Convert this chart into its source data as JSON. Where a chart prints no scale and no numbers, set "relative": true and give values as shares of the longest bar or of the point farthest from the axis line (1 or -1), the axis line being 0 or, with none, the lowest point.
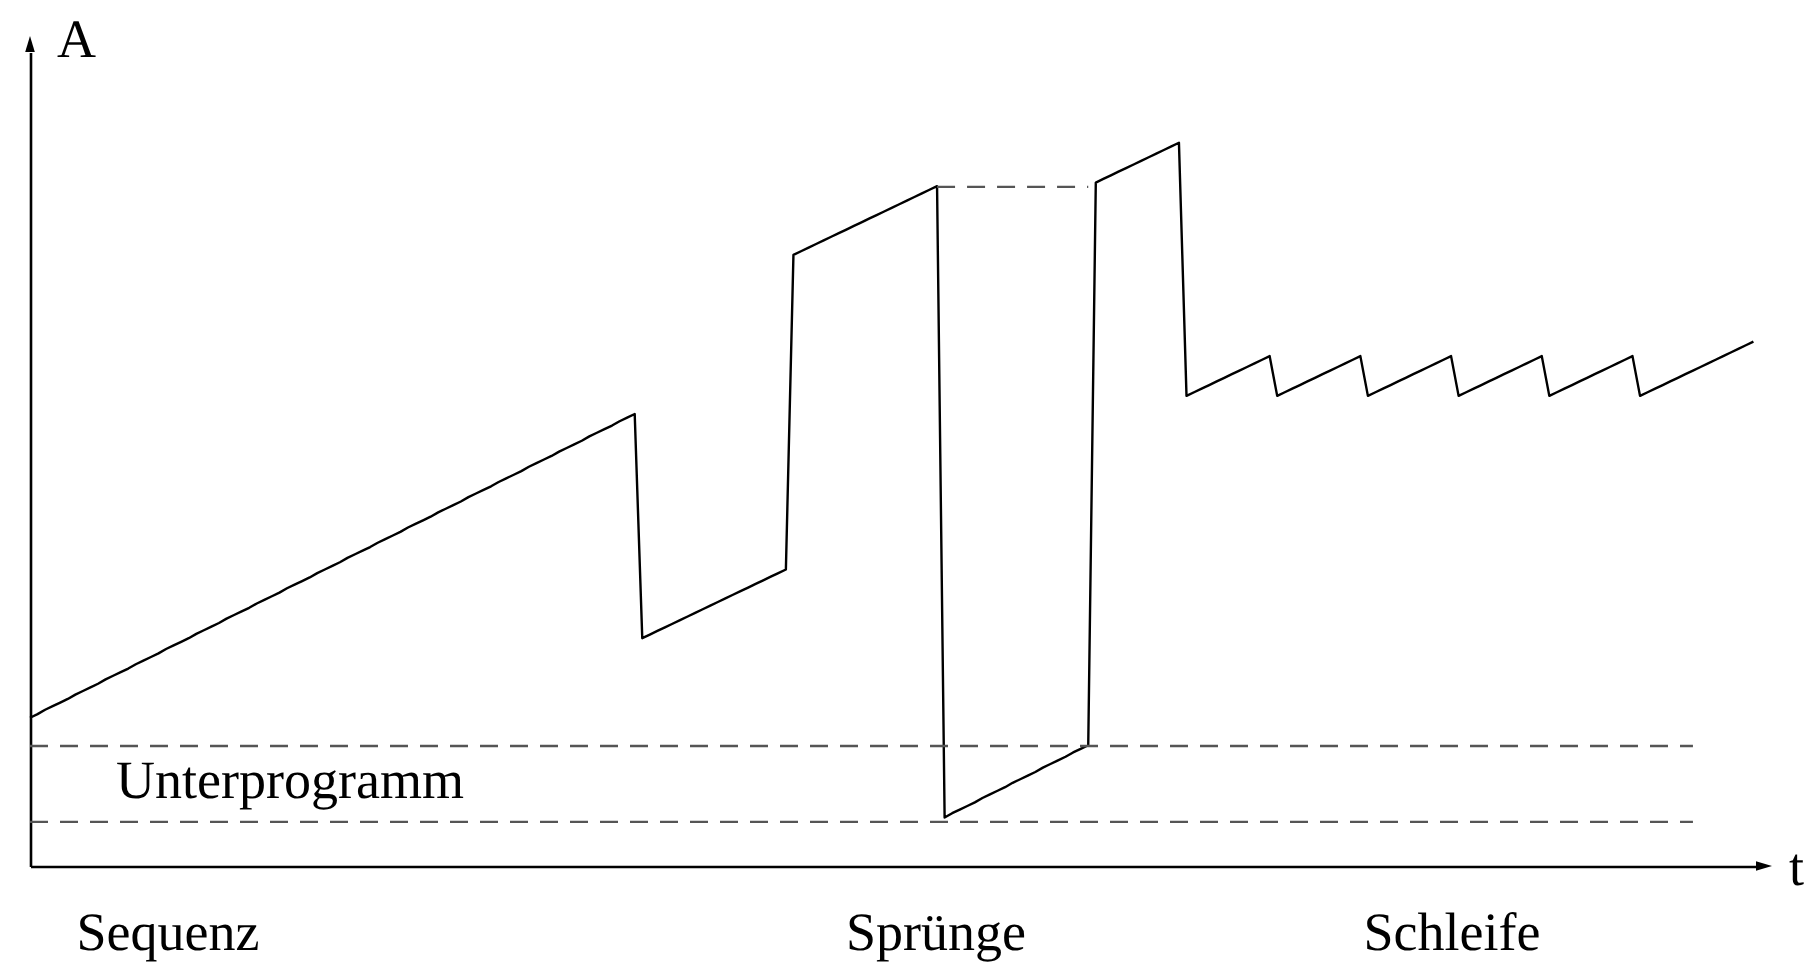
{
  "chart_data": {
    "type": "line",
    "relative": true,
    "xlabel": "t",
    "ylabel": "A",
    "tick_labels": false,
    "line_style": "solid",
    "categories": [
      null,
      null,
      null,
      null,
      null,
      null,
      null,
      null,
      null,
      null,
      null,
      null,
      null,
      null,
      null,
      null,
      null,
      null,
      null,
      null,
      null,
      null,
      null,
      null,
      null,
      null,
      null,
      null,
      null,
      null,
      null,
      null,
      null,
      null,
      null,
      null,
      null,
      null,
      null,
      null,
      null,
      null,
      null,
      null,
      null,
      null,
      null,
      null,
      null,
      null,
      null,
      null,
      null,
      null,
      null,
      null,
      null,
      null,
      null,
      null,
      null,
      null,
      null,
      null,
      null,
      null,
      null,
      null,
      null,
      null,
      null,
      null,
      null,
      null,
      null,
      null,
      null,
      null,
      null,
      null,
      null,
      null,
      null,
      null,
      null,
      null,
      null,
      null,
      null,
      null,
      null,
      null,
      null,
      null,
      null,
      null,
      null,
      null,
      null,
      null,
      null,
      null,
      null,
      null,
      null,
      null,
      null,
      null,
      null,
      null,
      null,
      null,
      null,
      null,
      null,
      null,
      null,
      null,
      null,
      null,
      null,
      null,
      null,
      null,
      null,
      null,
      null,
      null,
      null,
      null,
      null,
      null,
      null,
      null,
      null,
      null,
      null,
      null,
      null,
      null,
      null,
      null,
      null,
      null,
      null,
      null,
      null,
      null,
      null,
      null,
      null,
      null,
      null,
      null,
      null,
      null,
      null,
      null,
      null,
      null,
      null,
      null,
      null,
      null,
      null,
      null,
      null,
      null,
      null,
      null,
      null,
      null,
      null,
      null,
      null,
      null,
      null,
      null,
      null,
      null,
      null,
      null,
      null,
      null,
      null,
      null,
      null,
      null,
      null,
      null,
      null,
      null,
      null,
      null,
      null,
      null,
      null,
      null,
      null,
      null,
      null,
      null,
      null,
      null,
      null,
      null,
      null,
      null,
      null,
      null,
      null,
      null,
      null,
      null,
      null,
      null,
      null,
      null,
      null,
      null,
      null,
      null,
      null,
      null,
      null,
      null,
      null,
      null,
      null
    ],
    "series": [
      {
        "color": "#000000",
        "values": [
          0.205,
          0.21,
          0.216,
          0.221,
          0.226,
          0.231,
          0.237,
          0.242,
          0.247,
          0.252,
          0.258,
          0.263,
          0.268,
          0.273,
          0.279,
          0.284,
          0.289,
          0.294,
          0.3,
          0.305,
          0.31,
          0.315,
          0.321,
          0.326,
          0.331,
          0.336,
          0.342,
          0.347,
          0.352,
          0.357,
          0.363,
          0.368,
          0.373,
          0.378,
          0.384,
          0.389,
          0.394,
          0.399,
          0.405,
          0.41,
          0.415,
          0.42,
          0.426,
          0.431,
          0.436,
          0.441,
          0.447,
          0.452,
          0.457,
          0.462,
          0.468,
          0.473,
          0.478,
          0.483,
          0.489,
          0.494,
          0.499,
          0.504,
          0.51,
          0.515,
          0.52,
          0.525,
          0.531,
          0.536,
          0.541,
          0.546,
          0.552,
          0.557,
          0.562,
          0.567,
          0.573,
          0.578,
          0.583,
          0.588,
          0.594,
          0.599,
          0.604,
          0.609,
          0.615,
          0.62,
          0.625,
          0.315,
          0.32,
          0.325,
          0.33,
          0.335,
          0.34,
          0.345,
          0.35,
          0.355,
          0.36,
          0.365,
          0.37,
          0.375,
          0.38,
          0.385,
          0.39,
          0.395,
          0.4,
          0.405,
          0.41,
          0.845,
          0.85,
          0.855,
          0.86,
          0.865,
          0.87,
          0.875,
          0.88,
          0.885,
          0.89,
          0.895,
          0.9,
          0.905,
          0.91,
          0.915,
          0.92,
          0.925,
          0.93,
          0.935,
          0.94,
          0.067,
          0.073,
          0.078,
          0.083,
          0.088,
          0.094,
          0.099,
          0.104,
          0.109,
          0.115,
          0.12,
          0.125,
          0.13,
          0.136,
          0.141,
          0.146,
          0.151,
          0.157,
          0.162,
          0.167,
          0.945,
          0.95,
          0.955,
          0.96,
          0.965,
          0.97,
          0.975,
          0.98,
          0.985,
          0.99,
          0.995,
          1,
          0.65,
          0.655,
          0.66,
          0.665,
          0.67,
          0.675,
          0.68,
          0.685,
          0.69,
          0.695,
          0.7,
          0.705,
          0.65,
          0.655,
          0.66,
          0.665,
          0.67,
          0.675,
          0.68,
          0.685,
          0.69,
          0.695,
          0.7,
          0.705,
          0.65,
          0.655,
          0.66,
          0.665,
          0.67,
          0.675,
          0.68,
          0.685,
          0.69,
          0.695,
          0.7,
          0.705,
          0.65,
          0.655,
          0.66,
          0.665,
          0.67,
          0.675,
          0.68,
          0.685,
          0.69,
          0.695,
          0.7,
          0.705,
          0.65,
          0.655,
          0.66,
          0.665,
          0.67,
          0.675,
          0.68,
          0.685,
          0.69,
          0.695,
          0.7,
          0.705,
          0.65,
          0.655,
          0.66,
          0.665,
          0.67,
          0.675,
          0.68,
          0.685,
          0.69,
          0.695,
          0.7,
          0.705,
          0.71,
          0.715,
          0.72,
          0.725
        ]
      },
      {
        "color": "#555555",
        "line_style": "dashed",
        "values": [
          0.166,
          0.166,
          0.166,
          0.166,
          0.166,
          0.166,
          0.166,
          0.166,
          0.166,
          0.166,
          0.166,
          0.166,
          0.166,
          0.166,
          0.166,
          0.166,
          0.166,
          0.166,
          0.166,
          0.166,
          0.166,
          0.166,
          0.166,
          0.166,
          0.166,
          0.166,
          0.166,
          0.166,
          0.166,
          0.166,
          0.166,
          0.166,
          0.166,
          0.166,
          0.166,
          0.166,
          0.166,
          0.166,
          0.166,
          0.166,
          0.166,
          0.166,
          0.166,
          0.166,
          0.166,
          0.166,
          0.166,
          0.166,
          0.166,
          0.166,
          0.166,
          0.166,
          0.166,
          0.166,
          0.166,
          0.166,
          0.166,
          0.166,
          0.166,
          0.166,
          0.166,
          0.166,
          0.166,
          0.166,
          0.166,
          0.166,
          0.166,
          0.166,
          0.166,
          0.166,
          0.166,
          0.166,
          0.166,
          0.166,
          0.166,
          0.166,
          0.166,
          0.166,
          0.166,
          0.166,
          0.166,
          0.166,
          0.166,
          0.166,
          0.166,
          0.166,
          0.166,
          0.166,
          0.166,
          0.166,
          0.166,
          0.166,
          0.166,
          0.166,
          0.166,
          0.166,
          0.166,
          0.166,
          0.166,
          0.166,
          0.166,
          0.166,
          0.166,
          0.166,
          0.166,
          0.166,
          0.166,
          0.166,
          0.166,
          0.166,
          0.166,
          0.166,
          0.166,
          0.166,
          0.166,
          0.166,
          0.166,
          0.166,
          0.166,
          0.166,
          0.166,
          0.166,
          0.166,
          0.166,
          0.166,
          0.166,
          0.166,
          0.166,
          0.166,
          0.166,
          0.166,
          0.166,
          0.166,
          0.166,
          0.166,
          0.166,
          0.166,
          0.166,
          0.166,
          0.166,
          0.166,
          0.166,
          0.166,
          0.166,
          0.166,
          0.166,
          0.166,
          0.166,
          0.166,
          0.166,
          0.166,
          0.166,
          0.166,
          0.166,
          0.166,
          0.166,
          0.166,
          0.166,
          0.166,
          0.166,
          0.166,
          0.166,
          0.166,
          0.166,
          0.166,
          0.166,
          0.166,
          0.166,
          0.166,
          0.166,
          0.166,
          0.166,
          0.166,
          0.166,
          0.166,
          0.166,
          0.166,
          0.166,
          0.166,
          0.166,
          0.166,
          0.166,
          0.166,
          0.166,
          0.166,
          0.166,
          0.166,
          0.166,
          0.166,
          0.166,
          0.166,
          0.166,
          0.166,
          0.166,
          0.166,
          0.166,
          0.166,
          0.166,
          0.166,
          0.166,
          0.166,
          0.166,
          0.166,
          0.166,
          0.166,
          0.166,
          0.166,
          0.166,
          0.166,
          0.166,
          0.166,
          0.166,
          0.166,
          0.166,
          0.166,
          0.166,
          0.166,
          0.166,
          0.166,
          0.166,
          0.166,
          null,
          null,
          null,
          null,
          null,
          null,
          null,
          null
        ]
      },
      {
        "color": "#555555",
        "line_style": "dashed",
        "values": [
          0.061,
          0.061,
          0.061,
          0.061,
          0.061,
          0.061,
          0.061,
          0.061,
          0.061,
          0.061,
          0.061,
          0.061,
          0.061,
          0.061,
          0.061,
          0.061,
          0.061,
          0.061,
          0.061,
          0.061,
          0.061,
          0.061,
          0.061,
          0.061,
          0.061,
          0.061,
          0.061,
          0.061,
          0.061,
          0.061,
          0.061,
          0.061,
          0.061,
          0.061,
          0.061,
          0.061,
          0.061,
          0.061,
          0.061,
          0.061,
          0.061,
          0.061,
          0.061,
          0.061,
          0.061,
          0.061,
          0.061,
          0.061,
          0.061,
          0.061,
          0.061,
          0.061,
          0.061,
          0.061,
          0.061,
          0.061,
          0.061,
          0.061,
          0.061,
          0.061,
          0.061,
          0.061,
          0.061,
          0.061,
          0.061,
          0.061,
          0.061,
          0.061,
          0.061,
          0.061,
          0.061,
          0.061,
          0.061,
          0.061,
          0.061,
          0.061,
          0.061,
          0.061,
          0.061,
          0.061,
          0.061,
          0.061,
          0.061,
          0.061,
          0.061,
          0.061,
          0.061,
          0.061,
          0.061,
          0.061,
          0.061,
          0.061,
          0.061,
          0.061,
          0.061,
          0.061,
          0.061,
          0.061,
          0.061,
          0.061,
          0.061,
          0.061,
          0.061,
          0.061,
          0.061,
          0.061,
          0.061,
          0.061,
          0.061,
          0.061,
          0.061,
          0.061,
          0.061,
          0.061,
          0.061,
          0.061,
          0.061,
          0.061,
          0.061,
          0.061,
          0.061,
          0.061,
          0.061,
          0.061,
          0.061,
          0.061,
          0.061,
          0.061,
          0.061,
          0.061,
          0.061,
          0.061,
          0.061,
          0.061,
          0.061,
          0.061,
          0.061,
          0.061,
          0.061,
          0.061,
          0.061,
          0.061,
          0.061,
          0.061,
          0.061,
          0.061,
          0.061,
          0.061,
          0.061,
          0.061,
          0.061,
          0.061,
          0.061,
          0.061,
          0.061,
          0.061,
          0.061,
          0.061,
          0.061,
          0.061,
          0.061,
          0.061,
          0.061,
          0.061,
          0.061,
          0.061,
          0.061,
          0.061,
          0.061,
          0.061,
          0.061,
          0.061,
          0.061,
          0.061,
          0.061,
          0.061,
          0.061,
          0.061,
          0.061,
          0.061,
          0.061,
          0.061,
          0.061,
          0.061,
          0.061,
          0.061,
          0.061,
          0.061,
          0.061,
          0.061,
          0.061,
          0.061,
          0.061,
          0.061,
          0.061,
          0.061,
          0.061,
          0.061,
          0.061,
          0.061,
          0.061,
          0.061,
          0.061,
          0.061,
          0.061,
          0.061,
          0.061,
          0.061,
          0.061,
          0.061,
          0.061,
          0.061,
          0.061,
          0.061,
          0.061,
          0.061,
          0.061,
          0.061,
          0.061,
          0.061,
          0.061,
          null,
          null,
          null,
          null,
          null,
          null,
          null,
          null
        ]
      },
      {
        "color": "#555555",
        "line_style": "dashed",
        "values": [
          null,
          null,
          null,
          null,
          null,
          null,
          null,
          null,
          null,
          null,
          null,
          null,
          null,
          null,
          null,
          null,
          null,
          null,
          null,
          null,
          null,
          null,
          null,
          null,
          null,
          null,
          null,
          null,
          null,
          null,
          null,
          null,
          null,
          null,
          null,
          null,
          null,
          null,
          null,
          null,
          null,
          null,
          null,
          null,
          null,
          null,
          null,
          null,
          null,
          null,
          null,
          null,
          null,
          null,
          null,
          null,
          null,
          null,
          null,
          null,
          null,
          null,
          null,
          null,
          null,
          null,
          null,
          null,
          null,
          null,
          null,
          null,
          null,
          null,
          null,
          null,
          null,
          null,
          null,
          null,
          null,
          null,
          null,
          null,
          null,
          null,
          null,
          null,
          null,
          null,
          null,
          null,
          null,
          null,
          null,
          null,
          null,
          null,
          null,
          null,
          null,
          null,
          null,
          null,
          null,
          null,
          null,
          null,
          null,
          null,
          null,
          null,
          null,
          null,
          null,
          null,
          null,
          null,
          null,
          null,
          0.939,
          0.939,
          0.939,
          0.939,
          0.939,
          0.939,
          0.939,
          0.939,
          0.939,
          0.939,
          0.939,
          0.939,
          0.939,
          0.939,
          0.939,
          0.939,
          0.939,
          0.939,
          0.939,
          0.939,
          0.939,
          null,
          null,
          null,
          null,
          null,
          null,
          null,
          null,
          null,
          null,
          null,
          null,
          null,
          null,
          null,
          null,
          null,
          null,
          null,
          null,
          null,
          null,
          null,
          null,
          null,
          null,
          null,
          null,
          null,
          null,
          null,
          null,
          null,
          null,
          null,
          null,
          null,
          null,
          null,
          null,
          null,
          null,
          null,
          null,
          null,
          null,
          null,
          null,
          null,
          null,
          null,
          null,
          null,
          null,
          null,
          null,
          null,
          null,
          null,
          null,
          null,
          null,
          null,
          null,
          null,
          null,
          null,
          null,
          null,
          null,
          null,
          null,
          null,
          null,
          null,
          null,
          null,
          null,
          null,
          null,
          null,
          null,
          null,
          null,
          null,
          null,
          null,
          null
        ]
      }
    ],
    "annotations": [
      "Unterprogramm",
      "Sequenz",
      "Sprünge",
      "Schleife"
    ]
  }
}
